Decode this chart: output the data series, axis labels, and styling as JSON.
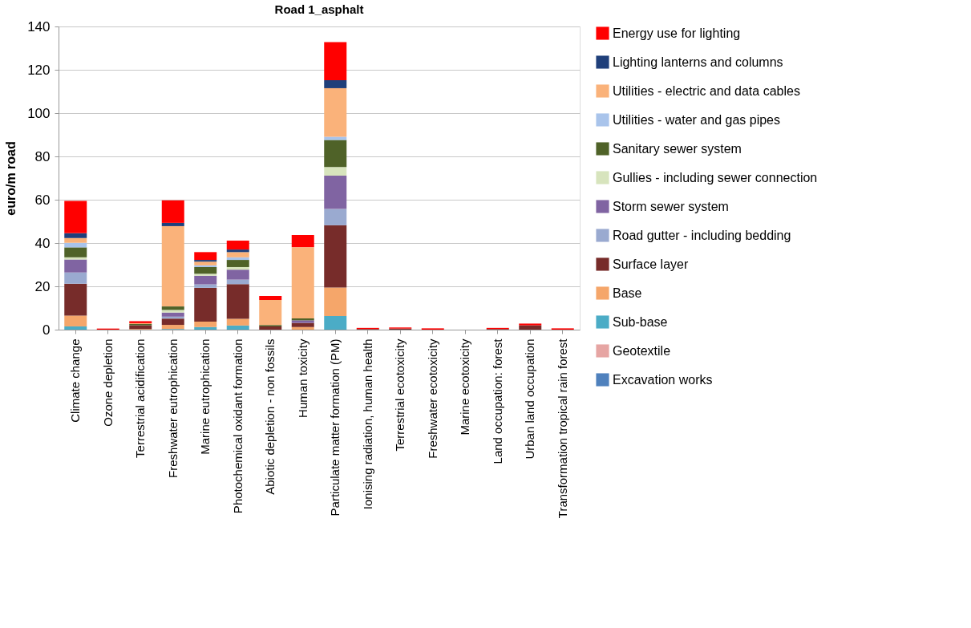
{
  "chart_data": {
    "type": "bar",
    "stacked": true,
    "title": "Road 1_asphalt",
    "ylabel": "euro/m road",
    "categories": [
      "Climate change",
      "Ozone depletion",
      "Terrestrial acidification",
      "Freshwater eutrophication",
      "Marine eutrophication",
      "Photochemical oxidant formation",
      "Abiotic depletion - non fossils",
      "Human toxicity",
      "Particulate matter formation (PM)",
      "Ionising radiation, human health",
      "Terrestrial ecotoxicity",
      "Freshwater ecotoxicity",
      "Marine ecotoxicity",
      "Land occupation: forest",
      "Urban land occupation",
      "Transformation tropical rain forest"
    ],
    "ylim": [
      0,
      140
    ],
    "yticks": [
      0,
      20,
      40,
      60,
      80,
      100,
      120,
      140
    ],
    "grid": "y",
    "legend": "right",
    "series": [
      {
        "name": "Excavation works",
        "color": "#4f81bd",
        "values": [
          0,
          0,
          0,
          0,
          0,
          0,
          0,
          0,
          0,
          0,
          0,
          0,
          0,
          0,
          0,
          0
        ]
      },
      {
        "name": "Geotextile",
        "color": "#e6a5a3",
        "values": [
          0,
          0,
          0,
          0,
          0,
          0,
          0,
          0,
          0,
          0,
          0,
          0,
          0,
          0,
          0,
          0
        ]
      },
      {
        "name": "Sub-base",
        "color": "#4bacc6",
        "values": [
          1.5,
          0,
          0,
          0.3,
          1.2,
          1.9,
          0,
          0,
          6.3,
          0,
          0,
          0,
          0,
          0,
          0,
          0
        ]
      },
      {
        "name": "Base",
        "color": "#f5a66a",
        "values": [
          5,
          0,
          0.3,
          1.9,
          2.5,
          3.1,
          0,
          1.2,
          13.1,
          0,
          0,
          0,
          0,
          0,
          0,
          0
        ]
      },
      {
        "name": "Surface layer",
        "color": "#772c2a",
        "values": [
          14.7,
          0,
          1.7,
          2.9,
          15.6,
          16,
          1.5,
          1.9,
          28.8,
          0.3,
          0.5,
          0,
          0,
          0.3,
          2,
          0
        ]
      },
      {
        "name": "Road gutter - including bedding",
        "color": "#9aaad0",
        "values": [
          5.2,
          0,
          0,
          0.9,
          1.6,
          2.1,
          0,
          0,
          7.5,
          0,
          0,
          0,
          0,
          0,
          0,
          0
        ]
      },
      {
        "name": "Storm sewer system",
        "color": "#8064a2",
        "values": [
          6,
          0,
          0,
          1.9,
          4,
          4.6,
          0,
          1.2,
          15.4,
          0,
          0,
          0,
          0,
          0,
          0,
          0
        ]
      },
      {
        "name": "Gullies - including sewer connection",
        "color": "#d7e4bd",
        "values": [
          1,
          0,
          0,
          1.2,
          0.9,
          1.2,
          0,
          0,
          4,
          0,
          0,
          0,
          0,
          0,
          0,
          0
        ]
      },
      {
        "name": "Sanitary sewer system",
        "color": "#4f6228",
        "values": [
          4.6,
          0,
          0.6,
          1.6,
          3.1,
          3.3,
          0.6,
          0.9,
          12.5,
          0,
          0,
          0,
          0,
          0,
          0,
          0
        ]
      },
      {
        "name": "Utilities - water and gas pipes",
        "color": "#a9c4eb",
        "values": [
          2.1,
          0,
          0,
          0,
          0.8,
          1.2,
          0,
          0,
          1.5,
          0,
          0,
          0,
          0,
          0,
          0,
          0
        ]
      },
      {
        "name": "Utilities - electric and data cables",
        "color": "#fab27a",
        "values": [
          2.2,
          0,
          0.4,
          37.1,
          1.7,
          2.4,
          11.6,
          32.9,
          22.4,
          0,
          0,
          0,
          0,
          0,
          0,
          0
        ]
      },
      {
        "name": "Lighting lanterns and columns",
        "color": "#1f3f7a",
        "values": [
          2.2,
          0,
          0,
          1.5,
          0.8,
          1.2,
          0,
          0,
          3.7,
          0,
          0,
          0,
          0,
          0,
          0,
          0
        ]
      },
      {
        "name": "Energy use for lighting",
        "color": "#ff0000",
        "values": [
          14.9,
          0.5,
          0.9,
          10.4,
          3.6,
          4.1,
          1.9,
          5.6,
          17.6,
          0.5,
          0.5,
          0.6,
          0,
          0.5,
          0.8,
          0.6
        ]
      }
    ]
  }
}
